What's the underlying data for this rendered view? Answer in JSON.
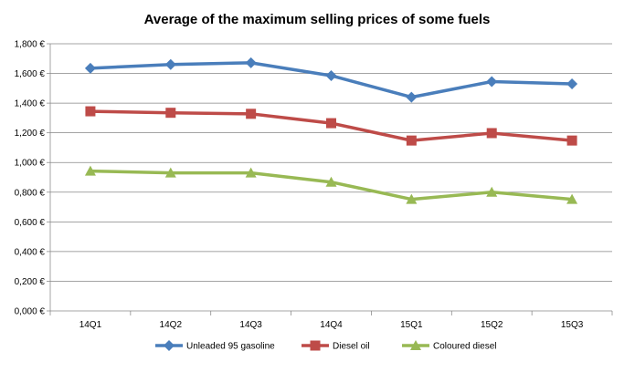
{
  "chart_data": {
    "type": "line",
    "title": "Average of the maximum selling prices of some fuels",
    "xlabel": "",
    "ylabel": "",
    "categories": [
      "14Q1",
      "14Q2",
      "14Q3",
      "14Q4",
      "15Q1",
      "15Q2",
      "15Q3"
    ],
    "y_ticks": [
      "0,000 €",
      "0,200 €",
      "0,400 €",
      "0,600 €",
      "0,800 €",
      "1,000 €",
      "1,200 €",
      "1,400 €",
      "1,600 €",
      "1,800 €"
    ],
    "ylim": [
      0,
      1.8
    ],
    "grid": true,
    "legend_position": "bottom",
    "series": [
      {
        "name": "Unleaded 95 gasoline",
        "color": "#4A7EBB",
        "marker": "diamond",
        "values": [
          1.635,
          1.66,
          1.672,
          1.585,
          1.44,
          1.545,
          1.53
        ]
      },
      {
        "name": "Diesel oil",
        "color": "#BE4B48",
        "marker": "square",
        "values": [
          1.345,
          1.335,
          1.328,
          1.265,
          1.148,
          1.198,
          1.148
        ]
      },
      {
        "name": "Coloured diesel",
        "color": "#98B954",
        "marker": "triangle",
        "values": [
          0.942,
          0.93,
          0.93,
          0.868,
          0.752,
          0.8,
          0.752
        ]
      }
    ]
  }
}
